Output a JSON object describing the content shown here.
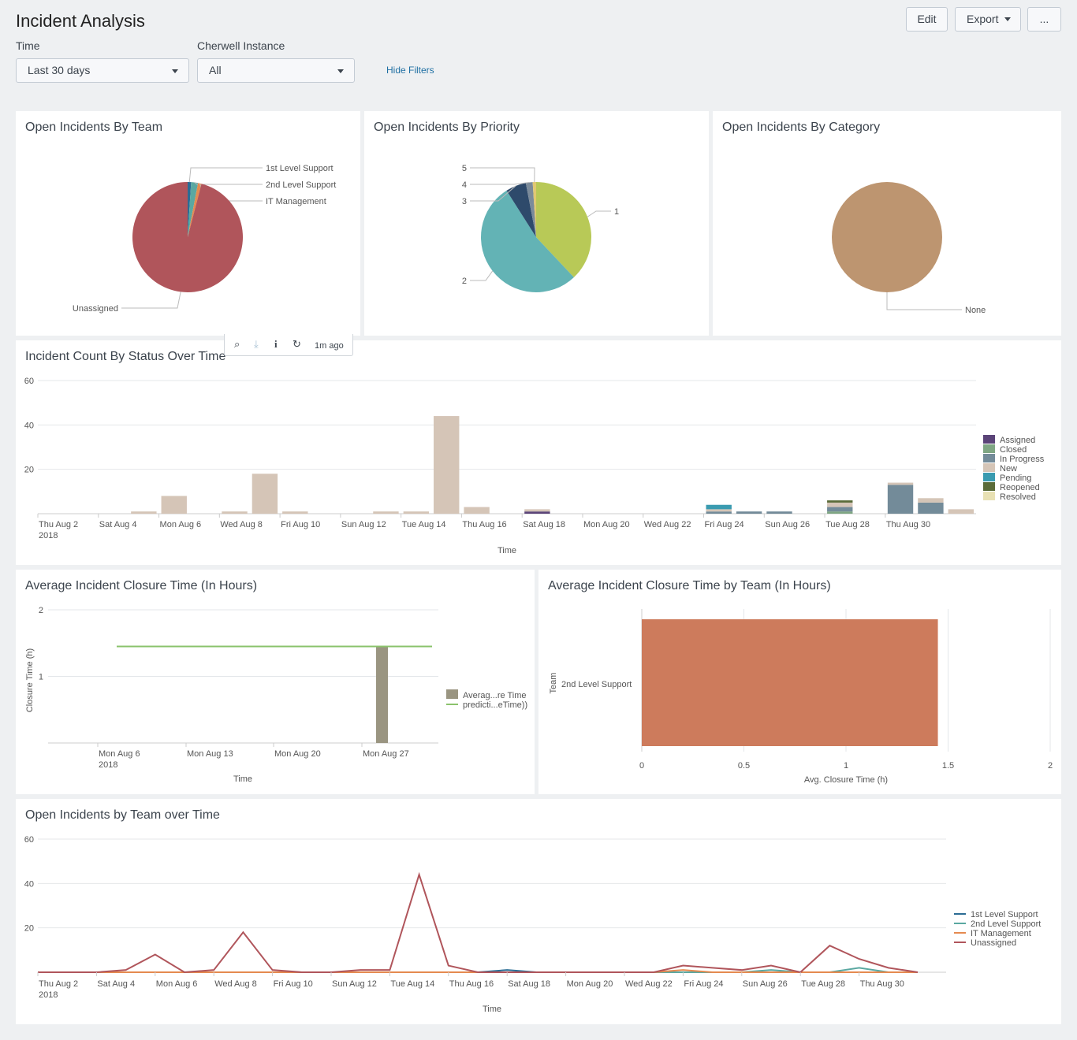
{
  "header": {
    "title": "Incident Analysis",
    "edit_label": "Edit",
    "export_label": "Export",
    "more_label": "..."
  },
  "filters": {
    "time_label": "Time",
    "time_value": "Last 30 days",
    "instance_label": "Cherwell Instance",
    "instance_value": "All",
    "hide_filters": "Hide Filters"
  },
  "panel_toolbar": {
    "age": "1m ago"
  },
  "panels": {
    "team": "Open Incidents By Team",
    "priority": "Open Incidents By Priority",
    "category": "Open Incidents By Category",
    "status_time": "Incident Count By Status Over Time",
    "closure": "Average Incident Closure Time (In Hours)",
    "closure_team": "Average Incident Closure Time by Team (In Hours)",
    "team_time": "Open Incidents by Team over Time"
  },
  "colors": {
    "unassigned": "#b0555b",
    "green": "#7fa683",
    "teal": "#5aa8a1",
    "orange": "#e58a50",
    "yellowgreen": "#b8c957",
    "navy": "#2e4a6b",
    "tan": "#bd9570",
    "salmon": "#cd7b5c"
  },
  "chart_data": [
    {
      "type": "pie",
      "title": "Open Incidents By Team",
      "labels": [
        "1st Level Support",
        "2nd Level Support",
        "IT Management",
        "Unassigned"
      ],
      "values": [
        1,
        2,
        1,
        95
      ],
      "colors": [
        "#2b6c94",
        "#5aa8a1",
        "#e58a50",
        "#b0555b"
      ]
    },
    {
      "type": "pie",
      "title": "Open Incidents By Priority",
      "labels": [
        "1",
        "2",
        "3",
        "4",
        "5"
      ],
      "values": [
        38,
        53,
        6,
        2,
        1
      ],
      "colors": [
        "#b8c957",
        "#63b3b5",
        "#2e4a6b",
        "#7b8b9a",
        "#e0c873"
      ]
    },
    {
      "type": "pie",
      "title": "Open Incidents By Category",
      "labels": [
        "None"
      ],
      "values": [
        1
      ],
      "colors": [
        "#bd9570"
      ]
    },
    {
      "type": "bar",
      "stacked": true,
      "title": "Incident Count By Status Over Time",
      "xlabel": "Time",
      "ylim": [
        0,
        60
      ],
      "yticks": [
        20,
        40,
        60
      ],
      "x_tick_labels": [
        "Thu Aug 2",
        "Sat Aug 4",
        "Mon Aug 6",
        "Wed Aug 8",
        "Fri Aug 10",
        "Sun Aug 12",
        "Tue Aug 14",
        "Thu Aug 16",
        "Sat Aug 18",
        "Mon Aug 20",
        "Wed Aug 22",
        "Fri Aug 24",
        "Sun Aug 26",
        "Tue Aug 28",
        "Thu Aug 30"
      ],
      "x_year": "2018",
      "legend_position": "right",
      "series": [
        {
          "name": "Assigned",
          "color": "#5b4478",
          "values": [
            0,
            0,
            0,
            0,
            0,
            0,
            0,
            0,
            0,
            0,
            0,
            0,
            0,
            0,
            0,
            0,
            1,
            0,
            0,
            0,
            0,
            0,
            0,
            0,
            0,
            0,
            0,
            0,
            0,
            0,
            0
          ]
        },
        {
          "name": "Closed",
          "color": "#7fa683",
          "values": [
            0,
            0,
            0,
            0,
            0,
            0,
            0,
            0,
            0,
            0,
            0,
            0,
            0,
            0,
            0,
            0,
            0,
            0,
            0,
            0,
            0,
            0,
            0,
            0,
            0,
            0,
            1,
            0,
            0,
            0,
            0
          ]
        },
        {
          "name": "In Progress",
          "color": "#738b99",
          "values": [
            0,
            0,
            0,
            0,
            0,
            0,
            0,
            0,
            0,
            0,
            0,
            0,
            0,
            0,
            0,
            0,
            0,
            0,
            0,
            0,
            0,
            0,
            1,
            1,
            1,
            0,
            2,
            0,
            13,
            5,
            0
          ]
        },
        {
          "name": "New",
          "color": "#d5c5b7",
          "values": [
            0,
            0,
            0,
            1,
            8,
            0,
            1,
            18,
            1,
            0,
            0,
            1,
            1,
            44,
            3,
            0,
            1,
            0,
            0,
            0,
            0,
            0,
            1,
            0,
            0,
            0,
            2,
            0,
            1,
            2,
            2
          ]
        },
        {
          "name": "Pending",
          "color": "#3a9bb0",
          "values": [
            0,
            0,
            0,
            0,
            0,
            0,
            0,
            0,
            0,
            0,
            0,
            0,
            0,
            0,
            0,
            0,
            0,
            0,
            0,
            0,
            0,
            0,
            2,
            0,
            0,
            0,
            0,
            0,
            0,
            0,
            0
          ]
        },
        {
          "name": "Reopened",
          "color": "#5a6b39",
          "values": [
            0,
            0,
            0,
            0,
            0,
            0,
            0,
            0,
            0,
            0,
            0,
            0,
            0,
            0,
            0,
            0,
            0,
            0,
            0,
            0,
            0,
            0,
            0,
            0,
            0,
            0,
            1,
            0,
            0,
            0,
            0
          ]
        },
        {
          "name": "Resolved",
          "color": "#e8e1b4",
          "values": [
            0,
            0,
            0,
            0,
            0,
            0,
            0,
            0,
            0,
            0,
            0,
            0,
            0,
            0,
            0,
            0,
            0,
            0,
            0,
            0,
            0,
            0,
            0,
            0,
            0,
            0,
            0,
            0,
            0,
            0,
            0
          ]
        }
      ]
    },
    {
      "type": "bar",
      "title": "Average Incident Closure Time (In Hours)",
      "xlabel": "Time",
      "ylabel": "Closure Time (h)",
      "yticks": [
        1,
        2
      ],
      "ylim": [
        0,
        2
      ],
      "x_tick_labels": [
        "Mon Aug 6",
        "Mon Aug 13",
        "Mon Aug 20",
        "Mon Aug 27"
      ],
      "x_year": "2018",
      "legend_position": "right",
      "series": [
        {
          "name": "Averag...re Time",
          "color": "#9a9581",
          "bar_date": "Mon Aug 27",
          "value": 1.45
        },
        {
          "name": "predicti...eTime))",
          "color": "#8bc36c",
          "line_value": 1.45
        }
      ]
    },
    {
      "type": "bar",
      "orientation": "horizontal",
      "title": "Average Incident Closure Time by Team (In Hours)",
      "xlabel": "Avg. Closure Time (h)",
      "ylabel": "Team",
      "xticks": [
        0,
        0.5,
        1,
        1.5,
        2
      ],
      "categories": [
        "2nd Level Support"
      ],
      "values": [
        1.45
      ],
      "color": "#cd7b5c"
    },
    {
      "type": "line",
      "title": "Open Incidents by Team over Time",
      "xlabel": "Time",
      "ylim": [
        0,
        60
      ],
      "yticks": [
        20,
        40,
        60
      ],
      "x_tick_labels": [
        "Thu Aug 2",
        "Sat Aug 4",
        "Mon Aug 6",
        "Wed Aug 8",
        "Fri Aug 10",
        "Sun Aug 12",
        "Tue Aug 14",
        "Thu Aug 16",
        "Sat Aug 18",
        "Mon Aug 20",
        "Wed Aug 22",
        "Fri Aug 24",
        "Sun Aug 26",
        "Tue Aug 28",
        "Thu Aug 30"
      ],
      "x_year": "2018",
      "legend_position": "right",
      "series": [
        {
          "name": "1st Level Support",
          "color": "#2b6c94",
          "values": [
            0,
            0,
            0,
            0,
            0,
            0,
            0,
            0,
            0,
            0,
            0,
            0,
            0,
            0,
            0,
            0,
            1,
            0,
            0,
            0,
            0,
            0,
            0,
            0,
            0,
            0,
            0,
            0,
            0,
            0,
            0
          ]
        },
        {
          "name": "2nd Level Support",
          "color": "#5aa8a1",
          "values": [
            0,
            0,
            0,
            0,
            0,
            0,
            0,
            0,
            0,
            0,
            0,
            0,
            0,
            0,
            0,
            0,
            0,
            0,
            0,
            0,
            0,
            0,
            0,
            0,
            0,
            1,
            0,
            0,
            2,
            0,
            0
          ]
        },
        {
          "name": "IT Management",
          "color": "#e58a50",
          "values": [
            0,
            0,
            0,
            0,
            0,
            0,
            0,
            0,
            0,
            0,
            0,
            0,
            0,
            0,
            0,
            0,
            0,
            0,
            0,
            0,
            0,
            0,
            1,
            0,
            0,
            0,
            0,
            0,
            0,
            0,
            0
          ]
        },
        {
          "name": "Unassigned",
          "color": "#b0555b",
          "values": [
            0,
            0,
            0,
            1,
            8,
            0,
            1,
            18,
            1,
            0,
            0,
            1,
            1,
            44,
            3,
            0,
            0,
            0,
            0,
            0,
            0,
            0,
            3,
            2,
            1,
            3,
            0,
            12,
            6,
            2,
            0
          ]
        }
      ]
    }
  ]
}
